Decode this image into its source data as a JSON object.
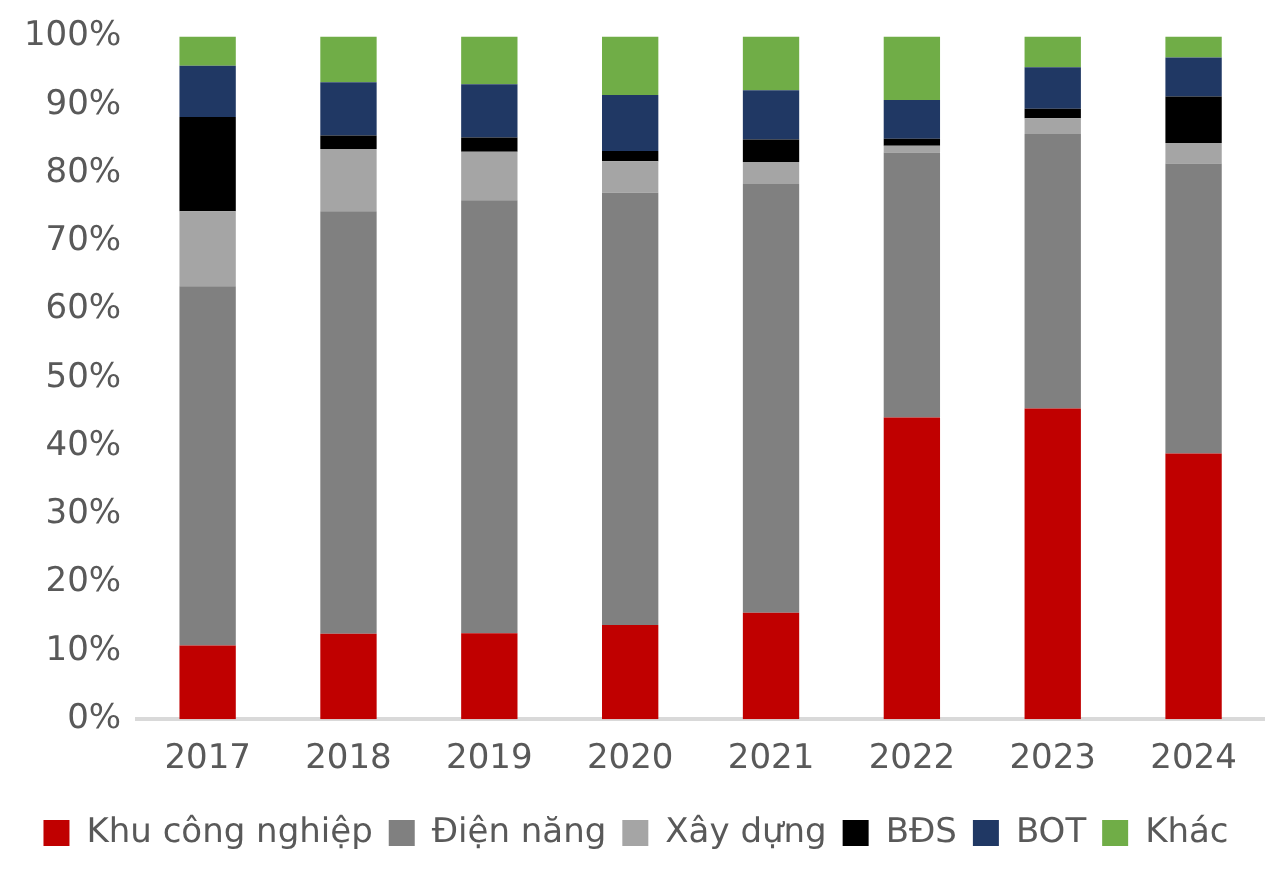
{
  "chart_data": {
    "type": "bar",
    "stacked": true,
    "categories": [
      "2017",
      "2018",
      "2019",
      "2020",
      "2021",
      "2022",
      "2023",
      "2024"
    ],
    "series": [
      {
        "name": "Khu công nghiệp",
        "color": "#c00000",
        "values": [
          10.8,
          12.5,
          12.6,
          13.8,
          15.6,
          44.2,
          45.5,
          38.9
        ]
      },
      {
        "name": "Điện năng",
        "color": "#808080",
        "values": [
          52.6,
          61.9,
          63.4,
          63.3,
          62.8,
          38.8,
          40.2,
          42.5
        ]
      },
      {
        "name": "Xây dựng",
        "color": "#a5a5a5",
        "values": [
          11.0,
          9.1,
          7.1,
          4.6,
          3.2,
          1.0,
          2.3,
          3.0
        ]
      },
      {
        "name": "BĐS",
        "color": "#000000",
        "values": [
          13.8,
          2.0,
          2.1,
          1.5,
          3.3,
          1.0,
          1.4,
          6.8
        ]
      },
      {
        "name": "BOT",
        "color": "#203864",
        "values": [
          7.5,
          7.8,
          7.8,
          8.2,
          7.2,
          5.7,
          6.1,
          5.7
        ]
      },
      {
        "name": "Khác",
        "color": "#70ad47",
        "values": [
          4.3,
          6.7,
          7.0,
          8.6,
          7.9,
          9.3,
          4.5,
          3.1
        ]
      }
    ],
    "ylim": [
      0,
      100
    ],
    "yticks": [
      {
        "value": 0,
        "label": "0%"
      },
      {
        "value": 10,
        "label": "10%"
      },
      {
        "value": 20,
        "label": "20%"
      },
      {
        "value": 30,
        "label": "30%"
      },
      {
        "value": 40,
        "label": "40%"
      },
      {
        "value": 50,
        "label": "50%"
      },
      {
        "value": 60,
        "label": "60%"
      },
      {
        "value": 70,
        "label": "70%"
      },
      {
        "value": 80,
        "label": "80%"
      },
      {
        "value": 90,
        "label": "90%"
      },
      {
        "value": 100,
        "label": "100%"
      }
    ],
    "grid": false,
    "legend": "bottom"
  }
}
